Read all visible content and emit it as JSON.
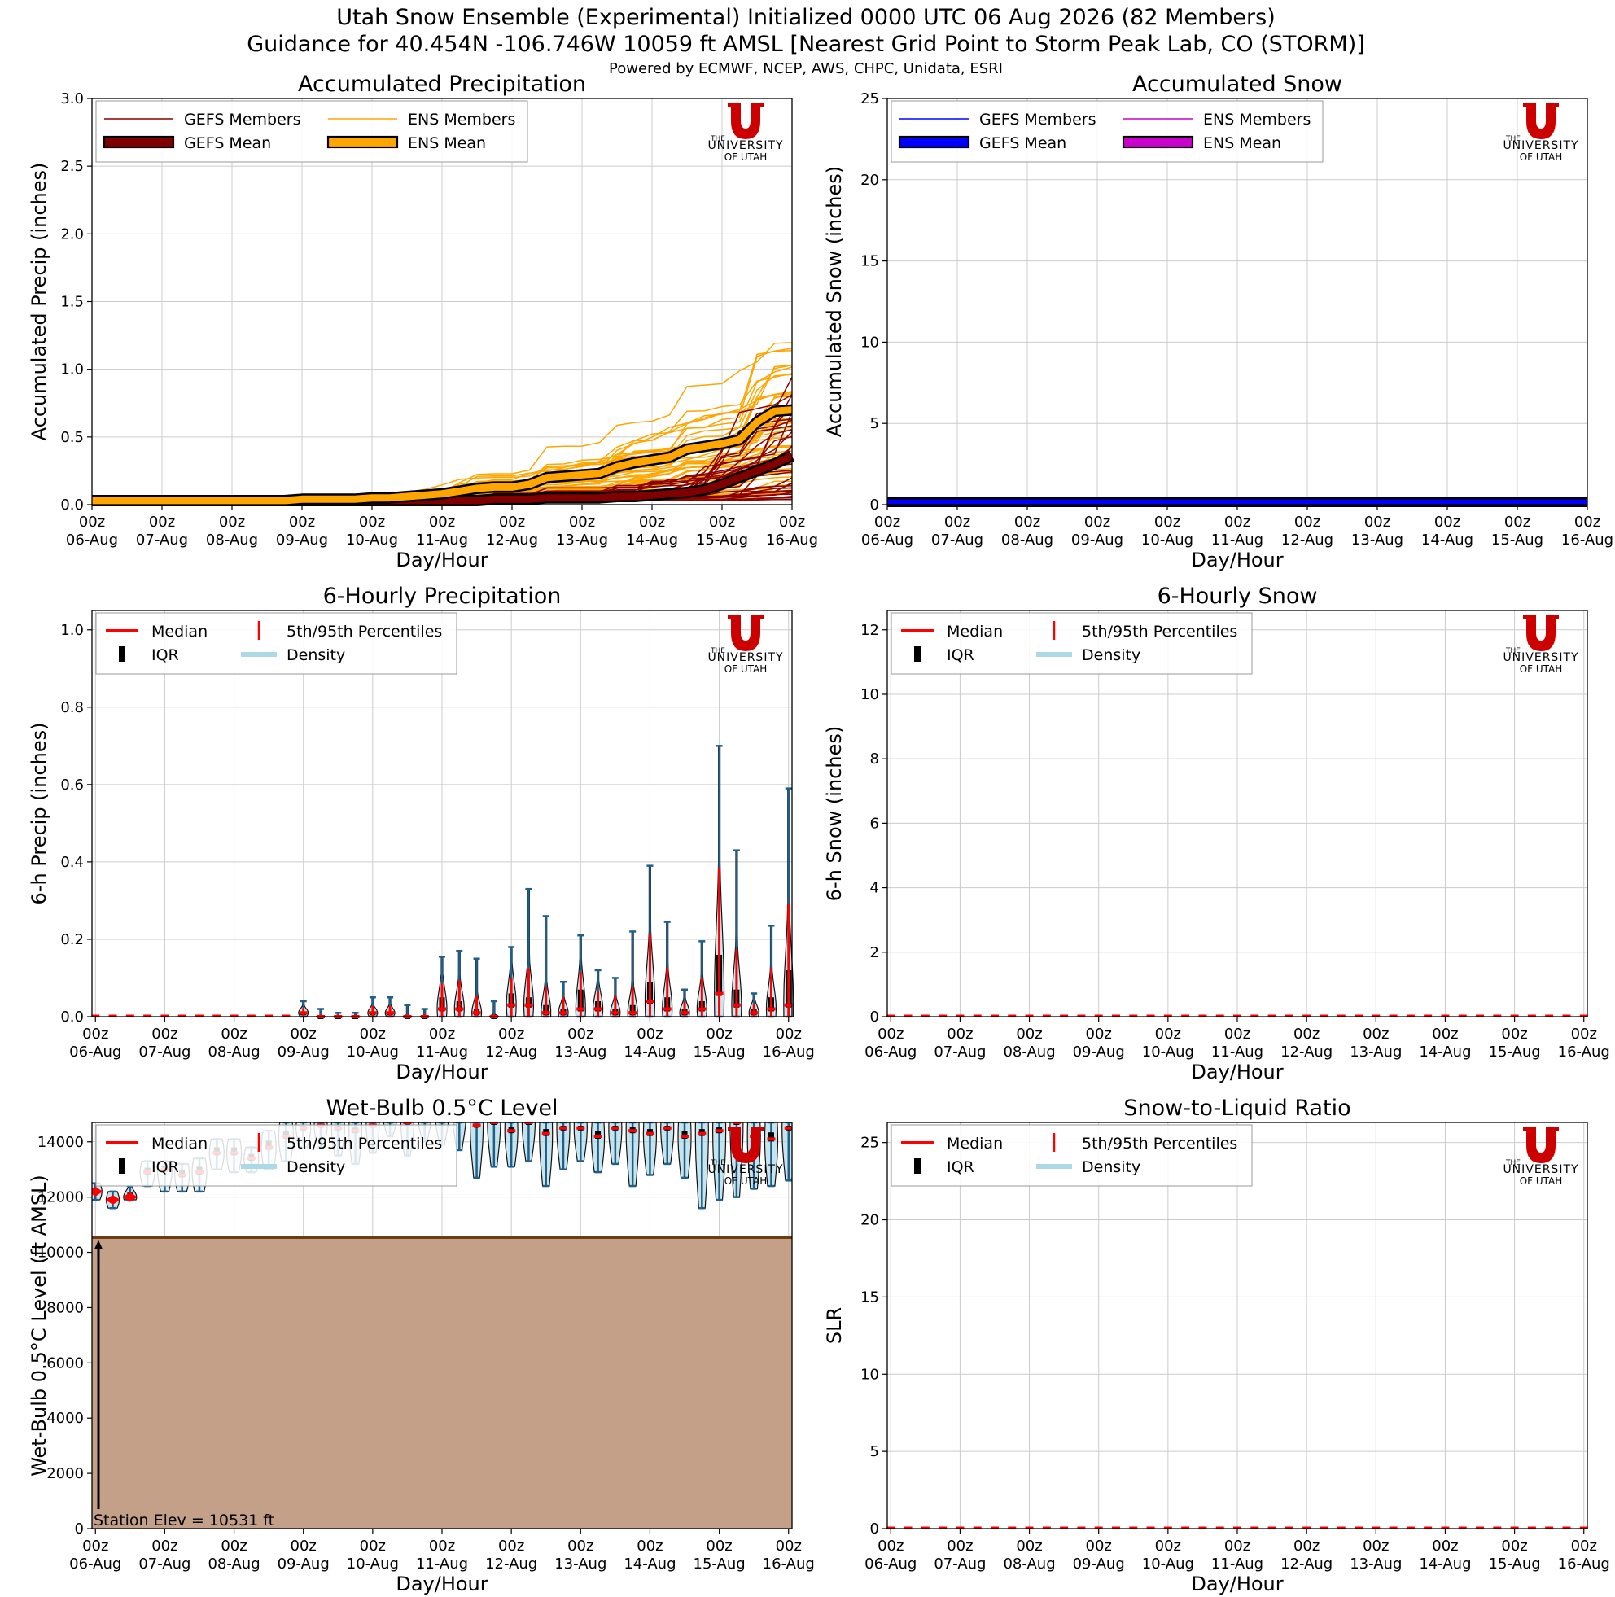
{
  "header": {
    "title_line1": "Utah Snow Ensemble (Experimental) Initialized 0000 UTC 06 Aug 2026 (82 Members)",
    "title_line2": "Guidance for 40.454N -106.746W 10059 ft AMSL [Nearest Grid Point to Storm Peak Lab, CO (STORM)]",
    "powered_by": "Powered by ECMWF, NCEP, AWS, CHPC, Unidata, ESRI"
  },
  "logo": {
    "the": "THE",
    "university": "UNIVERSITY",
    "of_utah": "OF UTAH",
    "u_color": "#cc0000"
  },
  "shared_axis": {
    "x_ticks_hour": [
      "00z",
      "00z",
      "00z",
      "00z",
      "00z",
      "00z",
      "00z",
      "00z",
      "00z",
      "00z",
      "00z"
    ],
    "x_ticks_day": [
      "06-Aug",
      "07-Aug",
      "08-Aug",
      "09-Aug",
      "10-Aug",
      "11-Aug",
      "12-Aug",
      "13-Aug",
      "14-Aug",
      "15-Aug",
      "16-Aug"
    ],
    "xlabel": "Day/Hour"
  },
  "colors": {
    "gefs_member": "#8b0000",
    "gefs_mean": "#800000",
    "ens_member": "#ffa500",
    "ens_mean": "#ffa500",
    "gefs_snow": "#0000ff",
    "ens_snow": "#cc00cc",
    "median": "#ff0000",
    "density": "#add8e6",
    "violin_edge": "#1f5f8b",
    "terrain": "#c4a089",
    "terrain_line": "#6b3e12"
  },
  "chart_data": [
    {
      "id": "accum_precip",
      "type": "line",
      "title": "Accumulated Precipitation",
      "ylabel": "Accumulated Precip (inches)",
      "xlabel": "Day/Hour",
      "ylim": [
        0,
        3.0
      ],
      "yticks": [
        0.0,
        0.5,
        1.0,
        1.5,
        2.0,
        2.5,
        3.0
      ],
      "ytick_labels": [
        "0.0",
        "0.5",
        "1.0",
        "1.5",
        "2.0",
        "2.5",
        "3.0"
      ],
      "grid": true,
      "legend_position": "top-left",
      "legend": [
        "GEFS Members",
        "ENS Members",
        "GEFS Mean",
        "ENS Mean"
      ],
      "x_days": [
        0,
        0.25,
        0.5,
        0.75,
        1,
        1.25,
        1.5,
        1.75,
        2,
        2.25,
        2.5,
        2.75,
        3,
        3.25,
        3.5,
        3.75,
        4,
        4.25,
        4.5,
        4.75,
        5,
        5.25,
        5.5,
        5.75,
        6,
        6.25,
        6.5,
        6.75,
        7,
        7.25,
        7.5,
        7.75,
        8,
        8.25,
        8.5,
        8.75,
        9,
        9.25,
        9.5,
        9.75,
        10
      ],
      "gefs_mean": [
        0.03,
        0.03,
        0.03,
        0.03,
        0.03,
        0.03,
        0.03,
        0.03,
        0.03,
        0.03,
        0.03,
        0.03,
        0.03,
        0.03,
        0.03,
        0.03,
        0.03,
        0.03,
        0.03,
        0.03,
        0.03,
        0.03,
        0.03,
        0.04,
        0.04,
        0.04,
        0.05,
        0.05,
        0.05,
        0.05,
        0.06,
        0.06,
        0.07,
        0.08,
        0.09,
        0.11,
        0.15,
        0.2,
        0.25,
        0.3,
        0.36
      ],
      "ens_mean": [
        0.03,
        0.03,
        0.03,
        0.03,
        0.03,
        0.03,
        0.03,
        0.03,
        0.03,
        0.03,
        0.03,
        0.03,
        0.04,
        0.04,
        0.04,
        0.04,
        0.05,
        0.05,
        0.06,
        0.07,
        0.08,
        0.1,
        0.12,
        0.13,
        0.13,
        0.15,
        0.2,
        0.21,
        0.22,
        0.23,
        0.28,
        0.31,
        0.33,
        0.35,
        0.41,
        0.43,
        0.45,
        0.48,
        0.61,
        0.69,
        0.7
      ]
    },
    {
      "id": "accum_snow",
      "type": "line",
      "title": "Accumulated Snow",
      "ylabel": "Accumulated Snow (inches)",
      "xlabel": "Day/Hour",
      "ylim": [
        0,
        25
      ],
      "yticks": [
        0,
        5,
        10,
        15,
        20,
        25
      ],
      "ytick_labels": [
        "0",
        "5",
        "10",
        "15",
        "20",
        "25"
      ],
      "grid": true,
      "legend_position": "top-left",
      "legend": [
        "GEFS Members",
        "ENS Members",
        "GEFS Mean",
        "ENS Mean"
      ],
      "gefs_mean_constant": 0,
      "ens_mean_constant": 0
    },
    {
      "id": "six_hour_precip",
      "type": "violin",
      "title": "6-Hourly Precipitation",
      "ylabel": "6-h Precip (inches)",
      "xlabel": "Day/Hour",
      "ylim": [
        0,
        1.05
      ],
      "yticks": [
        0.0,
        0.2,
        0.4,
        0.6,
        0.8,
        1.0
      ],
      "ytick_labels": [
        "0.0",
        "0.2",
        "0.4",
        "0.6",
        "0.8",
        "1.0"
      ],
      "grid": true,
      "legend_position": "top-left",
      "legend": [
        "Median",
        "5th/95th Percentiles",
        "IQR",
        "Density"
      ],
      "step_index": [
        0,
        1,
        2,
        3,
        4,
        5,
        6,
        7,
        8,
        9,
        10,
        11,
        12,
        13,
        14,
        15,
        16,
        17,
        18,
        19,
        20,
        21,
        22,
        23,
        24,
        25,
        26,
        27,
        28,
        29,
        30,
        31,
        32,
        33,
        34,
        35,
        36,
        37,
        38,
        39,
        40
      ],
      "p95": [
        0,
        0,
        0,
        0,
        0,
        0,
        0,
        0,
        0,
        0,
        0,
        0,
        0.04,
        0.02,
        0.01,
        0.01,
        0.05,
        0.05,
        0.03,
        0.02,
        0.155,
        0.17,
        0.15,
        0.04,
        0.18,
        0.33,
        0.26,
        0.09,
        0.21,
        0.12,
        0.1,
        0.22,
        0.39,
        0.245,
        0.07,
        0.195,
        0.7,
        0.43,
        0.06,
        0.235,
        0.59
      ],
      "median": [
        0,
        0,
        0,
        0,
        0,
        0,
        0,
        0,
        0,
        0,
        0,
        0,
        0.01,
        0,
        0,
        0,
        0.01,
        0.01,
        0,
        0,
        0.02,
        0.02,
        0.01,
        0,
        0.03,
        0.03,
        0.01,
        0.01,
        0.02,
        0.02,
        0.01,
        0.01,
        0.04,
        0.02,
        0.01,
        0.02,
        0.06,
        0.03,
        0.01,
        0.02,
        0.03
      ],
      "q3": [
        0,
        0,
        0,
        0,
        0,
        0,
        0,
        0,
        0,
        0,
        0,
        0,
        0.01,
        0,
        0,
        0,
        0.01,
        0.01,
        0,
        0,
        0.05,
        0.04,
        0.02,
        0,
        0.06,
        0.05,
        0.03,
        0.02,
        0.07,
        0.04,
        0.02,
        0.03,
        0.09,
        0.05,
        0.02,
        0.04,
        0.16,
        0.07,
        0.02,
        0.05,
        0.12
      ]
    },
    {
      "id": "six_hour_snow",
      "type": "violin",
      "title": "6-Hourly Snow",
      "ylabel": "6-h Snow (inches)",
      "xlabel": "Day/Hour",
      "ylim": [
        0,
        12.6
      ],
      "yticks": [
        0,
        2,
        4,
        6,
        8,
        10,
        12
      ],
      "ytick_labels": [
        "0",
        "2",
        "4",
        "6",
        "8",
        "10",
        "12"
      ],
      "grid": true,
      "legend_position": "top-left",
      "legend": [
        "Median",
        "5th/95th Percentiles",
        "IQR",
        "Density"
      ],
      "all_values": 0
    },
    {
      "id": "wetbulb",
      "type": "violin",
      "title": "Wet-Bulb 0.5°C Level",
      "ylabel": "Wet-Bulb 0.5°C Level (ft AMSL)",
      "xlabel": "Day/Hour",
      "ylim": [
        0,
        14700
      ],
      "yticks": [
        0,
        2000,
        4000,
        6000,
        8000,
        10000,
        12000,
        14000
      ],
      "ytick_labels": [
        "0",
        "2000",
        "4000",
        "6000",
        "8000",
        "10000",
        "12000",
        "14000"
      ],
      "grid": true,
      "legend_position": "top-left",
      "legend": [
        "Median",
        "5th/95th Percentiles",
        "IQR",
        "Density"
      ],
      "station_elev": 10531,
      "station_label": "Station Elev = 10531 ft",
      "step_index": [
        0,
        1,
        2,
        3,
        4,
        5,
        6,
        7,
        8,
        9,
        10,
        11,
        12,
        13,
        14,
        15,
        16,
        17,
        18,
        19,
        20,
        21,
        22,
        23,
        24,
        25,
        26,
        27,
        28,
        29,
        30,
        31,
        32,
        33,
        34,
        35,
        36,
        37,
        38,
        39,
        40
      ],
      "median": [
        12200,
        11900,
        12000,
        12900,
        13000,
        12800,
        12900,
        13600,
        13600,
        13400,
        13800,
        14200,
        14500,
        14600,
        14500,
        14400,
        14600,
        14800,
        14700,
        14900,
        14900,
        14900,
        14600,
        14700,
        14400,
        14700,
        14300,
        14500,
        14500,
        14200,
        14500,
        14400,
        14300,
        14500,
        14200,
        14300,
        14400,
        14700,
        14200,
        14100,
        14500
      ],
      "p5": [
        11900,
        11600,
        11900,
        12400,
        12200,
        12200,
        12200,
        13000,
        12900,
        12900,
        13000,
        13300,
        13800,
        13800,
        13500,
        13200,
        13600,
        14200,
        13500,
        14000,
        13900,
        13700,
        12700,
        13100,
        13100,
        13300,
        12400,
        13000,
        13300,
        12900,
        13200,
        12400,
        12800,
        13200,
        12700,
        11600,
        11900,
        12000,
        12300,
        12400,
        12600
      ],
      "p95": [
        12500,
        12200,
        12400,
        13300,
        13300,
        13200,
        13400,
        14100,
        14100,
        13800,
        14400,
        14700,
        14700,
        14700,
        14700,
        14700,
        14700,
        14700,
        14700,
        14700,
        14700,
        14700,
        14700,
        14700,
        14700,
        14700,
        14700,
        14700,
        14700,
        14700,
        14700,
        14700,
        14700,
        14700,
        14700,
        14700,
        14700,
        14700,
        14700,
        14700,
        14700
      ]
    },
    {
      "id": "slr",
      "type": "violin",
      "title": "Snow-to-Liquid Ratio",
      "ylabel": "SLR",
      "xlabel": "Day/Hour",
      "ylim": [
        0,
        26.3
      ],
      "yticks": [
        0,
        5,
        10,
        15,
        20,
        25
      ],
      "ytick_labels": [
        "0",
        "5",
        "10",
        "15",
        "20",
        "25"
      ],
      "grid": true,
      "legend_position": "top-left",
      "legend": [
        "Median",
        "5th/95th Percentiles",
        "IQR",
        "Density"
      ],
      "all_values": 0
    }
  ]
}
